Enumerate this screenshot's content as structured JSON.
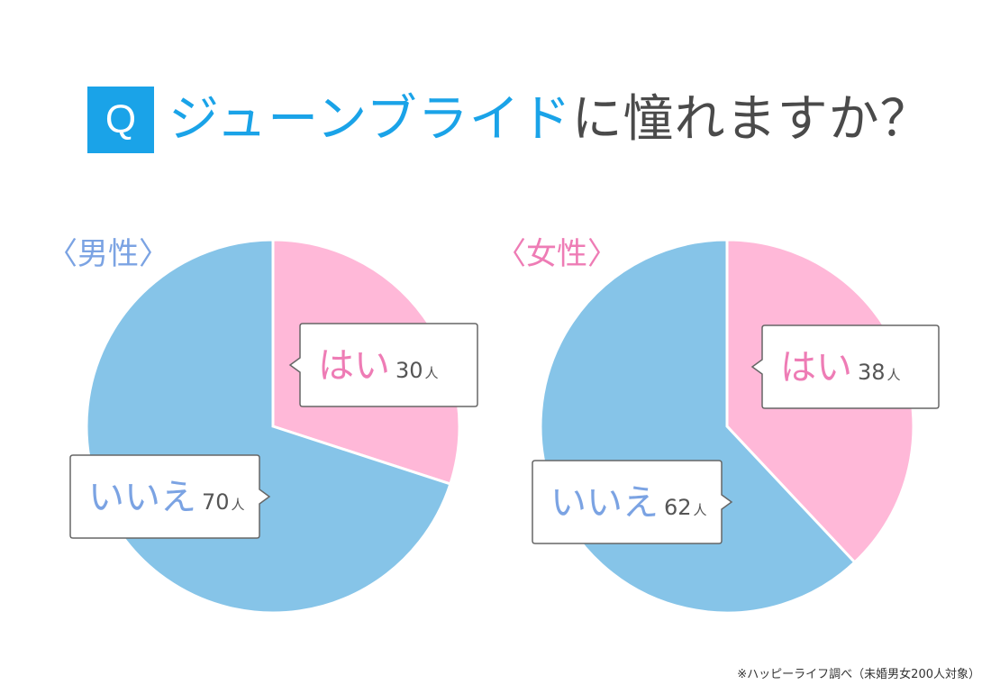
{
  "title": {
    "badge": "Q",
    "highlight": "ジューンブライド",
    "rest": "に憧れますか？"
  },
  "colors": {
    "accent": "#1aa3e8",
    "yes": "#ffb8d8",
    "no": "#86c4e8",
    "yes_text": "#ee7cb5",
    "no_text": "#7ba3e3"
  },
  "chart_data": [
    {
      "type": "pie",
      "title": "〈男性〉",
      "slices": [
        {
          "label": "はい",
          "value": 30,
          "display": "30",
          "unit": "人"
        },
        {
          "label": "いいえ",
          "value": 70,
          "display": "70",
          "unit": "人"
        }
      ]
    },
    {
      "type": "pie",
      "title": "〈女性〉",
      "slices": [
        {
          "label": "はい",
          "value": 38,
          "display": "38",
          "unit": "人"
        },
        {
          "label": "いいえ",
          "value": 62,
          "display": "62",
          "unit": "人"
        }
      ]
    }
  ],
  "footnote": "※ハッピーライフ調べ（未婚男女200人対象）"
}
